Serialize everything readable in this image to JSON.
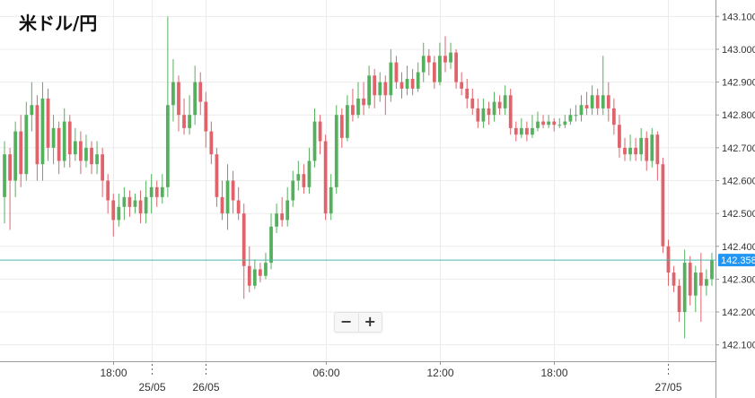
{
  "title": "米ドル/円",
  "zoom": {
    "out_label": "−",
    "in_label": "+"
  },
  "colors": {
    "up": "#55b05e",
    "down": "#e0636c",
    "current_line": "#4db6ac",
    "current_tag": "#2196f3",
    "grid": "#ececec"
  },
  "chart_data": {
    "type": "candlestick",
    "ylim": [
      142.05,
      143.15
    ],
    "y_ticks": [
      142.1,
      142.2,
      142.3,
      142.4,
      142.5,
      142.6,
      142.7,
      142.8,
      142.9,
      143.0,
      143.1
    ],
    "y_tick_labels": [
      "142.100",
      "142.200",
      "142.300",
      "142.400",
      "142.500",
      "142.600",
      "142.700",
      "142.800",
      "142.900",
      "143.000",
      "143.100"
    ],
    "x_ticks": [
      {
        "label": "18:00",
        "index": 20,
        "row": 1
      },
      {
        "label": "25/05",
        "index": 27,
        "row": 2,
        "separator": true
      },
      {
        "label": "26/05",
        "index": 37,
        "row": 2,
        "separator": true
      },
      {
        "label": "06:00",
        "index": 59,
        "row": 1
      },
      {
        "label": "12:00",
        "index": 80,
        "row": 1
      },
      {
        "label": "18:00",
        "index": 101,
        "row": 1
      },
      {
        "label": "27/05",
        "index": 122,
        "row": 2,
        "separator": true
      }
    ],
    "current_price": 142.358,
    "current_price_label": "142.358",
    "candles": [
      [
        142.55,
        142.68,
        142.72,
        142.47
      ],
      [
        142.68,
        142.6,
        142.7,
        142.45
      ],
      [
        142.6,
        142.75,
        142.78,
        142.55
      ],
      [
        142.75,
        142.62,
        142.8,
        142.58
      ],
      [
        142.62,
        142.8,
        142.84,
        142.6
      ],
      [
        142.8,
        142.83,
        142.9,
        142.75
      ],
      [
        142.83,
        142.65,
        142.86,
        142.6
      ],
      [
        142.65,
        142.85,
        142.9,
        142.6
      ],
      [
        142.85,
        142.7,
        142.88,
        142.66
      ],
      [
        142.7,
        142.76,
        142.8,
        142.65
      ],
      [
        142.76,
        142.66,
        142.78,
        142.62
      ],
      [
        142.66,
        142.78,
        142.82,
        142.64
      ],
      [
        142.78,
        142.68,
        142.8,
        142.64
      ],
      [
        142.68,
        142.72,
        142.76,
        142.66
      ],
      [
        142.72,
        142.66,
        142.75,
        142.62
      ],
      [
        142.66,
        142.7,
        142.74,
        142.64
      ],
      [
        142.7,
        142.65,
        142.72,
        142.62
      ],
      [
        142.65,
        142.68,
        142.72,
        142.62
      ],
      [
        142.68,
        142.6,
        142.7,
        142.55
      ],
      [
        142.6,
        142.54,
        142.62,
        142.5
      ],
      [
        142.54,
        142.48,
        142.56,
        142.43
      ],
      [
        142.48,
        142.52,
        142.56,
        142.46
      ],
      [
        142.52,
        142.55,
        142.58,
        142.48
      ],
      [
        142.55,
        142.52,
        142.57,
        142.49
      ],
      [
        142.52,
        142.54,
        142.56,
        142.5
      ],
      [
        142.54,
        142.5,
        142.57,
        142.47
      ],
      [
        142.5,
        142.55,
        142.6,
        142.47
      ],
      [
        142.55,
        142.58,
        142.62,
        142.5
      ],
      [
        142.58,
        142.55,
        142.6,
        142.52
      ],
      [
        142.55,
        142.58,
        142.62,
        142.53
      ],
      [
        142.58,
        142.83,
        143.1,
        142.55
      ],
      [
        142.83,
        142.9,
        142.97,
        142.78
      ],
      [
        142.9,
        142.8,
        142.92,
        142.75
      ],
      [
        142.8,
        142.76,
        142.85,
        142.74
      ],
      [
        142.76,
        142.8,
        142.86,
        142.74
      ],
      [
        142.8,
        142.9,
        142.95,
        142.77
      ],
      [
        142.9,
        142.84,
        142.93,
        142.8
      ],
      [
        142.84,
        142.75,
        142.87,
        142.7
      ],
      [
        142.75,
        142.68,
        142.78,
        142.65
      ],
      [
        142.68,
        142.55,
        142.7,
        142.52
      ],
      [
        142.55,
        142.5,
        142.6,
        142.48
      ],
      [
        142.5,
        142.6,
        142.65,
        142.45
      ],
      [
        142.6,
        142.54,
        142.63,
        142.5
      ],
      [
        142.54,
        142.5,
        142.58,
        142.48
      ],
      [
        142.5,
        142.34,
        142.53,
        142.24
      ],
      [
        142.34,
        142.28,
        142.4,
        142.26
      ],
      [
        142.28,
        142.33,
        142.36,
        142.27
      ],
      [
        142.33,
        142.31,
        142.35,
        142.29
      ],
      [
        142.31,
        142.35,
        142.38,
        142.3
      ],
      [
        142.35,
        142.46,
        142.5,
        142.33
      ],
      [
        142.46,
        142.5,
        142.53,
        142.44
      ],
      [
        142.5,
        142.48,
        142.55,
        142.46
      ],
      [
        142.48,
        142.54,
        142.58,
        142.46
      ],
      [
        142.54,
        142.6,
        142.63,
        142.52
      ],
      [
        142.6,
        142.62,
        142.66,
        142.57
      ],
      [
        142.62,
        142.58,
        142.65,
        142.56
      ],
      [
        142.58,
        142.66,
        142.7,
        142.56
      ],
      [
        142.66,
        142.78,
        142.82,
        142.64
      ],
      [
        142.78,
        142.72,
        142.8,
        142.68
      ],
      [
        142.72,
        142.5,
        142.74,
        142.48
      ],
      [
        142.5,
        142.58,
        142.62,
        142.48
      ],
      [
        142.58,
        142.8,
        142.83,
        142.56
      ],
      [
        142.8,
        142.73,
        142.82,
        142.7
      ],
      [
        142.73,
        142.83,
        142.86,
        142.72
      ],
      [
        142.83,
        142.8,
        142.88,
        142.78
      ],
      [
        142.8,
        142.85,
        142.9,
        142.79
      ],
      [
        142.85,
        142.83,
        142.9,
        142.8
      ],
      [
        142.83,
        142.92,
        142.95,
        142.82
      ],
      [
        142.92,
        142.86,
        142.94,
        142.82
      ],
      [
        142.86,
        142.9,
        142.93,
        142.84
      ],
      [
        142.9,
        142.86,
        142.92,
        142.8
      ],
      [
        142.86,
        142.96,
        143.0,
        142.84
      ],
      [
        142.96,
        142.9,
        142.98,
        142.88
      ],
      [
        142.9,
        142.88,
        142.93,
        142.85
      ],
      [
        142.88,
        142.91,
        142.95,
        142.86
      ],
      [
        142.91,
        142.88,
        142.94,
        142.86
      ],
      [
        142.88,
        142.93,
        142.96,
        142.87
      ],
      [
        142.93,
        142.98,
        143.02,
        142.9
      ],
      [
        142.98,
        142.96,
        143.0,
        142.92
      ],
      [
        142.96,
        142.9,
        142.98,
        142.88
      ],
      [
        142.9,
        142.98,
        143.02,
        142.89
      ],
      [
        142.98,
        142.96,
        143.04,
        142.93
      ],
      [
        142.96,
        142.99,
        143.02,
        142.94
      ],
      [
        142.99,
        142.9,
        143.0,
        142.88
      ],
      [
        142.9,
        142.88,
        142.93,
        142.86
      ],
      [
        142.88,
        142.85,
        142.91,
        142.82
      ],
      [
        142.85,
        142.82,
        142.88,
        142.8
      ],
      [
        142.82,
        142.78,
        142.85,
        142.76
      ],
      [
        142.78,
        142.82,
        142.85,
        142.76
      ],
      [
        142.82,
        142.8,
        142.84,
        142.77
      ],
      [
        142.8,
        142.84,
        142.87,
        142.78
      ],
      [
        142.84,
        142.82,
        142.86,
        142.8
      ],
      [
        142.82,
        142.86,
        142.89,
        142.8
      ],
      [
        142.86,
        142.76,
        142.88,
        142.74
      ],
      [
        142.76,
        142.74,
        142.78,
        142.72
      ],
      [
        142.74,
        142.76,
        142.79,
        142.73
      ],
      [
        142.76,
        142.74,
        142.78,
        142.72
      ],
      [
        142.74,
        142.76,
        142.8,
        142.73
      ],
      [
        142.76,
        142.78,
        142.81,
        142.75
      ],
      [
        142.78,
        142.77,
        142.8,
        142.76
      ],
      [
        142.77,
        142.78,
        142.8,
        142.76
      ],
      [
        142.78,
        142.77,
        142.79,
        142.75
      ],
      [
        142.77,
        142.77,
        142.79,
        142.76
      ],
      [
        142.77,
        142.78,
        142.8,
        142.76
      ],
      [
        142.78,
        142.8,
        142.82,
        142.77
      ],
      [
        142.8,
        142.8,
        142.83,
        142.78
      ],
      [
        142.8,
        142.83,
        142.86,
        142.78
      ],
      [
        142.83,
        142.82,
        142.87,
        142.8
      ],
      [
        142.82,
        142.86,
        142.89,
        142.8
      ],
      [
        142.86,
        142.82,
        142.88,
        142.8
      ],
      [
        142.82,
        142.86,
        142.98,
        142.8
      ],
      [
        142.86,
        142.82,
        142.9,
        142.78
      ],
      [
        142.82,
        142.77,
        142.85,
        142.74
      ],
      [
        142.77,
        142.7,
        142.8,
        142.67
      ],
      [
        142.7,
        142.68,
        142.73,
        142.66
      ],
      [
        142.68,
        142.7,
        142.74,
        142.66
      ],
      [
        142.7,
        142.68,
        142.73,
        142.66
      ],
      [
        142.68,
        142.73,
        142.76,
        142.66
      ],
      [
        142.73,
        142.66,
        142.75,
        142.63
      ],
      [
        142.66,
        142.74,
        142.76,
        142.64
      ],
      [
        142.74,
        142.65,
        142.75,
        142.6
      ],
      [
        142.65,
        142.4,
        142.67,
        142.38
      ],
      [
        142.4,
        142.32,
        142.42,
        142.28
      ],
      [
        142.32,
        142.28,
        142.34,
        142.26
      ],
      [
        142.28,
        142.2,
        142.3,
        142.17
      ],
      [
        142.2,
        142.35,
        142.39,
        142.12
      ],
      [
        142.35,
        142.25,
        142.37,
        142.22
      ],
      [
        142.25,
        142.32,
        142.34,
        142.2
      ],
      [
        142.32,
        142.28,
        142.38,
        142.17
      ],
      [
        142.28,
        142.3,
        142.33,
        142.25
      ],
      [
        142.3,
        142.358,
        142.38,
        142.28
      ]
    ]
  }
}
